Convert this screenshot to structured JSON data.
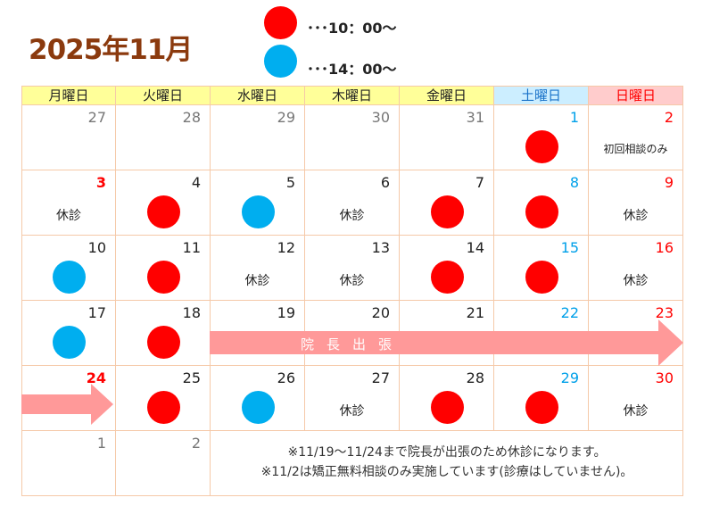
{
  "title": "2025年11月",
  "legend": [
    {
      "color": "#ff0000",
      "text": "･･･10：00～"
    },
    {
      "color": "#00aeef",
      "text": "･･･14：00～"
    }
  ],
  "colors": {
    "border": "#f5c9a8",
    "weekday_header": "#ffff99",
    "sat_header": "#cceeff",
    "sun_header": "#ffcccc",
    "sat_text": "#00a0e9",
    "sun_text": "#ff0000",
    "other_month": "#777777",
    "arrow": "#ff9999",
    "red_mark": "#ff0000",
    "blue_mark": "#00aeef"
  },
  "weekdays": [
    "月曜日",
    "火曜日",
    "水曜日",
    "木曜日",
    "金曜日",
    "土曜日",
    "日曜日"
  ],
  "weeks": [
    [
      {
        "day": "27",
        "other": true
      },
      {
        "day": "28",
        "other": true
      },
      {
        "day": "29",
        "other": true
      },
      {
        "day": "30",
        "other": true
      },
      {
        "day": "31",
        "other": true
      },
      {
        "day": "1",
        "mark": "red"
      },
      {
        "day": "2",
        "note": "初回相談のみ"
      }
    ],
    [
      {
        "day": "3",
        "holiday": true,
        "note": "休診"
      },
      {
        "day": "4",
        "mark": "red"
      },
      {
        "day": "5",
        "mark": "blue"
      },
      {
        "day": "6",
        "note": "休診"
      },
      {
        "day": "7",
        "mark": "red"
      },
      {
        "day": "8",
        "mark": "red"
      },
      {
        "day": "9",
        "note": "休診"
      }
    ],
    [
      {
        "day": "10",
        "mark": "blue"
      },
      {
        "day": "11",
        "mark": "red"
      },
      {
        "day": "12",
        "note": "休診"
      },
      {
        "day": "13",
        "note": "休診"
      },
      {
        "day": "14",
        "mark": "red"
      },
      {
        "day": "15",
        "mark": "red"
      },
      {
        "day": "16",
        "note": "休診"
      }
    ],
    [
      {
        "day": "17",
        "mark": "blue"
      },
      {
        "day": "18",
        "mark": "red"
      },
      {
        "day": "19"
      },
      {
        "day": "20"
      },
      {
        "day": "21"
      },
      {
        "day": "22"
      },
      {
        "day": "23"
      }
    ],
    [
      {
        "day": "24",
        "holiday": true
      },
      {
        "day": "25",
        "mark": "red"
      },
      {
        "day": "26",
        "mark": "blue"
      },
      {
        "day": "27",
        "note": "休診"
      },
      {
        "day": "28",
        "mark": "red"
      },
      {
        "day": "29",
        "mark": "red"
      },
      {
        "day": "30",
        "note": "休診"
      }
    ],
    [
      {
        "day": "1",
        "other": true
      },
      {
        "day": "2",
        "other": true
      }
    ]
  ],
  "trip_label": "院長出張",
  "footnotes": [
    "※11/19～11/24まで院長が出張のため休診になります。",
    "※11/2は矯正無料相談のみ実施しています(診療はしていません)。"
  ]
}
